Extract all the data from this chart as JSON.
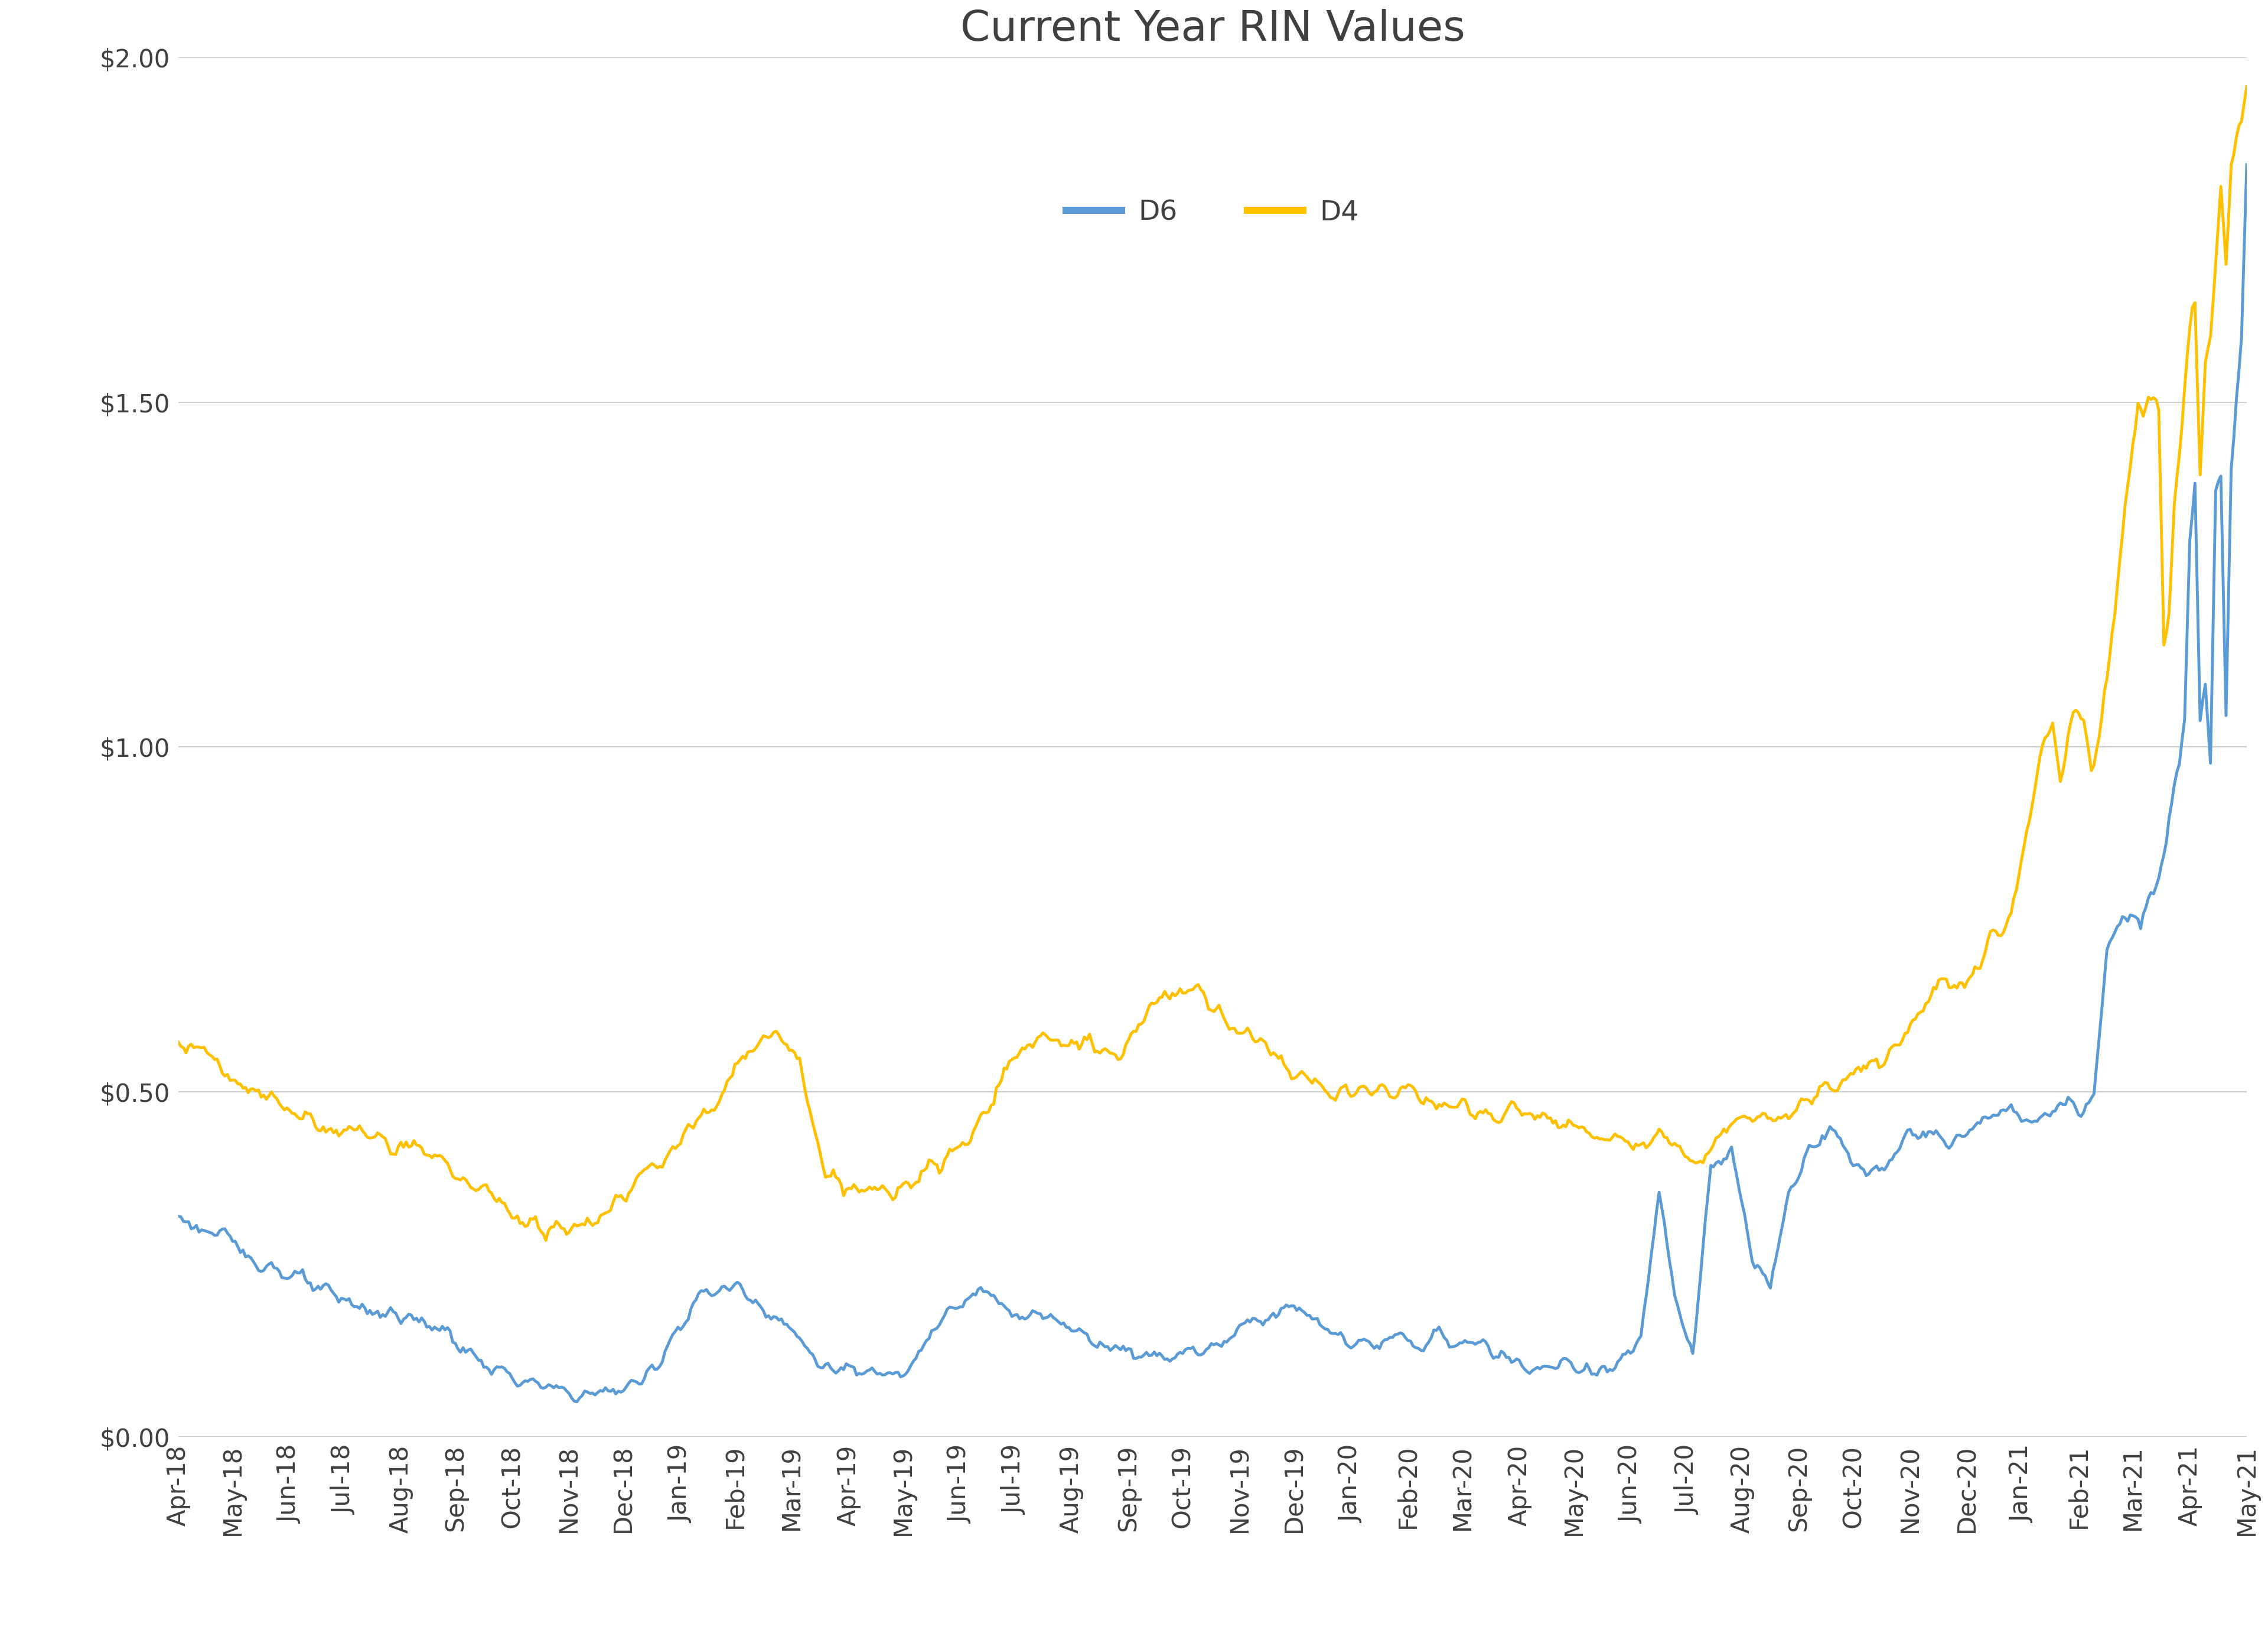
{
  "title": "Current Year RIN Values",
  "d6_color": "#5B9BD5",
  "d4_color": "#FFC000",
  "background_color": "#FFFFFF",
  "grid_color": "#CCCCCC",
  "text_color": "#404040",
  "ylim": [
    0.0,
    2.0
  ],
  "yticks": [
    0.0,
    0.5,
    1.0,
    1.5,
    2.0
  ],
  "ytick_labels": [
    "$0.00",
    "$0.50",
    "$1.00",
    "$1.50",
    "$2.00"
  ],
  "title_fontsize": 52,
  "tick_fontsize": 30,
  "legend_fontsize": 34,
  "line_width": 3.5,
  "x_labels": [
    "Apr-18",
    "May-18",
    "Jun-18",
    "Jul-18",
    "Aug-18",
    "Sep-18",
    "Oct-18",
    "Nov-18",
    "Dec-18",
    "Jan-19",
    "Feb-19",
    "Mar-19",
    "Apr-19",
    "May-19",
    "Jun-19",
    "Jul-19",
    "Aug-19",
    "Sep-19",
    "Oct-19",
    "Nov-19",
    "Dec-19",
    "Jan-20",
    "Feb-20",
    "Mar-20",
    "Apr-20",
    "May-20",
    "Jun-20",
    "Jul-20",
    "Aug-20",
    "Sep-20",
    "Oct-20",
    "Nov-20",
    "Dec-20",
    "Jan-21",
    "Feb-21",
    "Mar-21",
    "Apr-21",
    "May-21"
  ]
}
